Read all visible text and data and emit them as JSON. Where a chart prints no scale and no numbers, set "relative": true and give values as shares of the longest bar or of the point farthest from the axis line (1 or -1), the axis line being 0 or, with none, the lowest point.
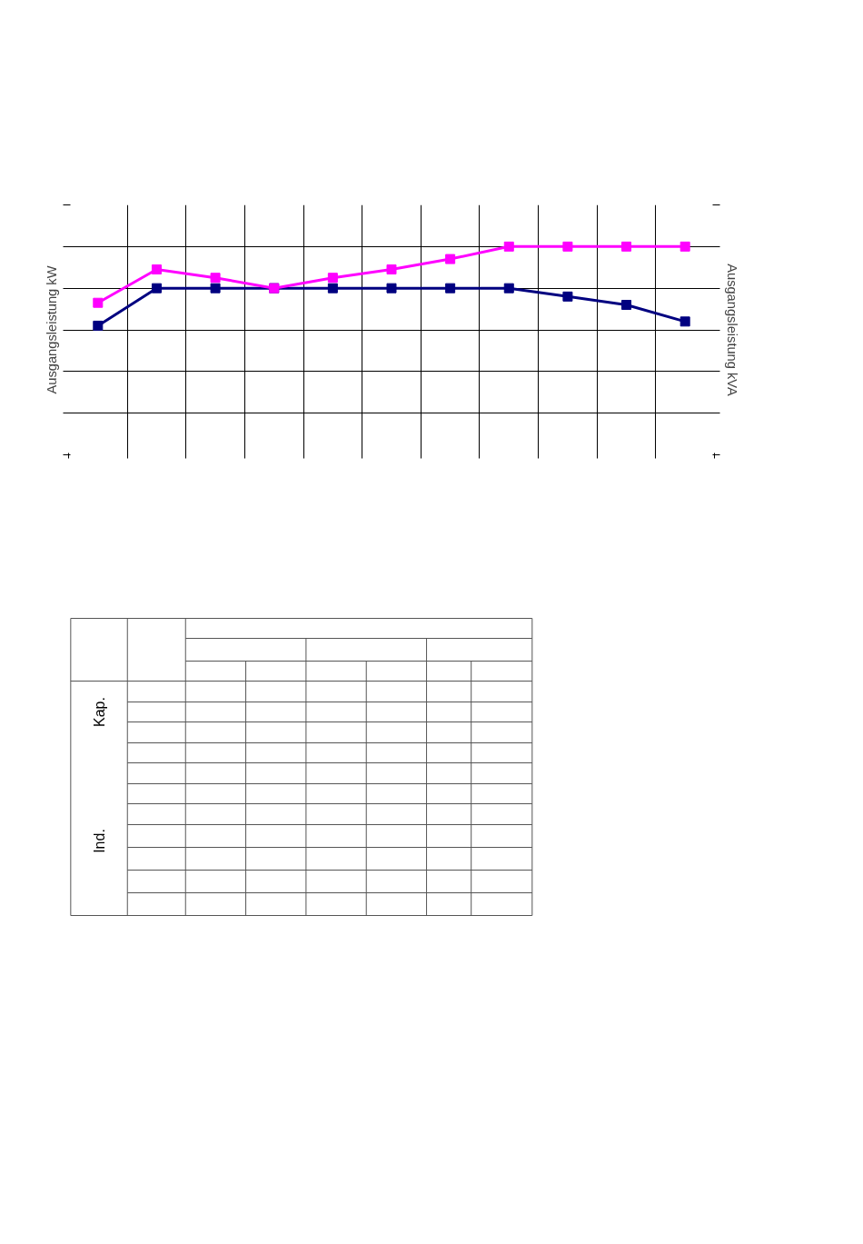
{
  "chart_data": [
    {
      "type": "line",
      "ylabel": "Ausgangsleistung kW",
      "y2label": "Ausgangsleistung kVA",
      "relative": true,
      "categories": [
        null,
        null,
        null,
        null,
        null,
        null,
        null,
        null,
        null,
        null,
        null
      ],
      "series": [
        {
          "color": "#000080",
          "values": [
            0.62,
            0.8,
            0.8,
            0.8,
            0.8,
            0.8,
            0.8,
            0.8,
            0.76,
            0.72,
            0.64
          ]
        },
        {
          "color": "#ff00ff",
          "values": [
            0.73,
            0.89,
            0.85,
            0.8,
            0.85,
            0.89,
            0.94,
            1,
            1,
            1,
            1
          ]
        }
      ],
      "marker": "square",
      "line_style": "solid",
      "grid": true
    },
    {
      "type": "other",
      "annotations": [
        "Kap.",
        "Ind."
      ]
    }
  ]
}
